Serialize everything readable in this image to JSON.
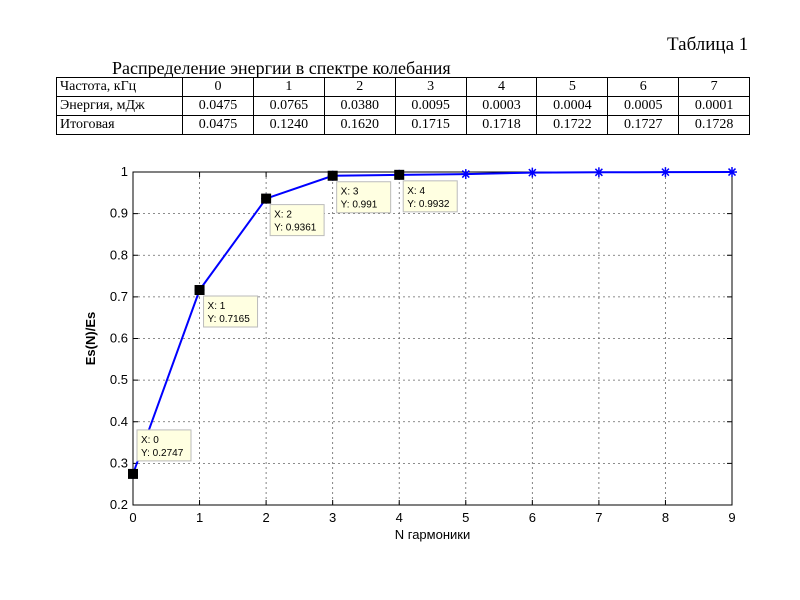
{
  "table": {
    "caption": "Таблица 1",
    "title": "Распределение энергии в спектре колебания",
    "rows": [
      {
        "label": "Частота, кГц",
        "cells": [
          "0",
          "1",
          "2",
          "3",
          "4",
          "5",
          "6",
          "7"
        ]
      },
      {
        "label": "Энергия, мДж",
        "cells": [
          "0.0475",
          "0.0765",
          "0.0380",
          "0.0095",
          "0.0003",
          "0.0004",
          "0.0005",
          "0.0001"
        ]
      },
      {
        "label": "Итоговая",
        "cells": [
          "0.0475",
          "0.1240",
          "0.1620",
          "0.1715",
          "0.1718",
          "0.1722",
          "0.1727",
          "0.1728"
        ]
      }
    ]
  },
  "chart_data": {
    "type": "line",
    "title": "",
    "xlabel": "N гармоники",
    "ylabel": "Es(N)/Es",
    "xlim": [
      0,
      9
    ],
    "ylim": [
      0.2,
      1
    ],
    "x_ticks": [
      "0",
      "1",
      "2",
      "3",
      "4",
      "5",
      "6",
      "7",
      "8",
      "9"
    ],
    "y_ticks": [
      "0.2",
      "0.3",
      "0.4",
      "0.5",
      "0.6",
      "0.7",
      "0.8",
      "0.9",
      "1"
    ],
    "grid": true,
    "line_color": "#0000ff",
    "series": [
      {
        "x": [
          0,
          1,
          2,
          3,
          4,
          5,
          6,
          7,
          8,
          9
        ],
        "y": [
          0.2747,
          0.7165,
          0.9361,
          0.991,
          0.9932,
          0.995,
          0.9985,
          0.9993,
          0.9997,
          0.9999
        ]
      }
    ],
    "datatips": [
      {
        "x": 0,
        "y": 0.2747,
        "x_text": "X: 0",
        "y_text": "Y: 0.2747"
      },
      {
        "x": 1,
        "y": 0.7165,
        "x_text": "X: 1",
        "y_text": "Y: 0.7165"
      },
      {
        "x": 2,
        "y": 0.9361,
        "x_text": "X: 2",
        "y_text": "Y: 0.9361"
      },
      {
        "x": 3,
        "y": 0.991,
        "x_text": "X: 3",
        "y_text": "Y: 0.991"
      },
      {
        "x": 4,
        "y": 0.9932,
        "x_text": "X: 4",
        "y_text": "Y: 0.9932"
      }
    ]
  }
}
